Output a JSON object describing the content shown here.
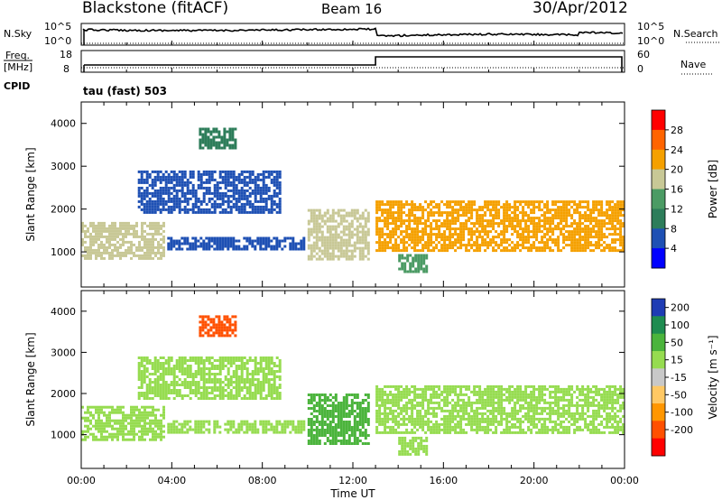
{
  "header": {
    "title": "Blackstone (fitACF)",
    "beam": "Beam 16",
    "date": "30/Apr/2012"
  },
  "sky_panel": {
    "left_label": "N.Sky",
    "right_label": "N.Search",
    "left_ticks": [
      "10^5",
      "10^0"
    ],
    "right_ticks": [
      "10^5",
      "10^0"
    ]
  },
  "freq_panel": {
    "left_label": "Freq.",
    "left_unit": "[MHz]",
    "left_ticks": [
      "18",
      "8"
    ],
    "right_label": "Nave",
    "right_ticks": [
      "60",
      "0"
    ],
    "cpid_label": "CPID",
    "cpid_value": "tau (fast) 503"
  },
  "chart_data": [
    {
      "type": "heatmap",
      "parameter": "Power",
      "ylabel": "Slant Range [km]",
      "xlabel": "Time UT",
      "x_range_hours": [
        0,
        24
      ],
      "ylim": [
        180,
        4500
      ],
      "yticks": [
        "1000",
        "2000",
        "3000",
        "4000"
      ],
      "colorbar": {
        "label": "Power [dB]",
        "ticks": [
          "4",
          "8",
          "12",
          "16",
          "20",
          "24",
          "28"
        ],
        "levels": [
          2,
          6,
          10,
          14,
          18,
          22,
          26,
          30
        ],
        "colors": [
          "#0000ff",
          "#1e50b4",
          "#2d7d5a",
          "#4b9b64",
          "#c8c896",
          "#f5a000",
          "#ff6400",
          "#ff0000"
        ]
      },
      "regions": [
        {
          "t0": 0.0,
          "t1": 3.6,
          "r0": 850,
          "r1": 1700,
          "value": 18
        },
        {
          "t0": 2.5,
          "t1": 8.8,
          "r0": 1900,
          "r1": 2900,
          "value": 8
        },
        {
          "t0": 3.8,
          "t1": 9.8,
          "r0": 1050,
          "r1": 1350,
          "value": 8
        },
        {
          "t0": 5.2,
          "t1": 6.8,
          "r0": 3400,
          "r1": 3900,
          "value": 12
        },
        {
          "t0": 10.0,
          "t1": 12.7,
          "r0": 800,
          "r1": 2000,
          "value": 20
        },
        {
          "t0": 13.0,
          "t1": 24.0,
          "r0": 1050,
          "r1": 2200,
          "value": 22
        },
        {
          "t0": 14.0,
          "t1": 15.2,
          "r0": 550,
          "r1": 950,
          "value": 16
        }
      ]
    },
    {
      "type": "heatmap",
      "parameter": "Velocity",
      "ylabel": "Slant Range [km]",
      "xlabel": "Time UT",
      "x_range_hours": [
        0,
        24
      ],
      "ylim": [
        180,
        4500
      ],
      "yticks": [
        "1000",
        "2000",
        "3000",
        "4000"
      ],
      "xticks": [
        "00:00",
        "04:00",
        "08:00",
        "12:00",
        "16:00",
        "20:00",
        "00:00"
      ],
      "colorbar": {
        "label": "Velocity [m s⁻¹]",
        "ticks": [
          "200",
          "100",
          "50",
          "15",
          "-15",
          "-50",
          "-100",
          "-200"
        ],
        "levels": [
          250,
          150,
          75,
          30,
          0,
          -30,
          -75,
          -150,
          -250
        ],
        "colors": [
          "#1e3cb4",
          "#1e8c50",
          "#4bb43c",
          "#96dc50",
          "#c8c8c8",
          "#ffc864",
          "#ff9600",
          "#ff5000",
          "#ff0000"
        ]
      },
      "regions": [
        {
          "t0": 0.0,
          "t1": 3.6,
          "r0": 850,
          "r1": 1700,
          "value": 0
        },
        {
          "t0": 2.5,
          "t1": 8.8,
          "r0": 1900,
          "r1": 2900,
          "value": 0
        },
        {
          "t0": 3.8,
          "t1": 9.8,
          "r0": 1050,
          "r1": 1350,
          "value": 0
        },
        {
          "t0": 5.2,
          "t1": 6.8,
          "r0": 3400,
          "r1": 3900,
          "value": -200
        },
        {
          "t0": 10.0,
          "t1": 12.7,
          "r0": 800,
          "r1": 2000,
          "value": 50
        },
        {
          "t0": 13.0,
          "t1": 24.0,
          "r0": 1050,
          "r1": 2200,
          "value": 0
        },
        {
          "t0": 14.0,
          "t1": 15.2,
          "r0": 550,
          "r1": 950,
          "value": 0
        }
      ]
    }
  ]
}
